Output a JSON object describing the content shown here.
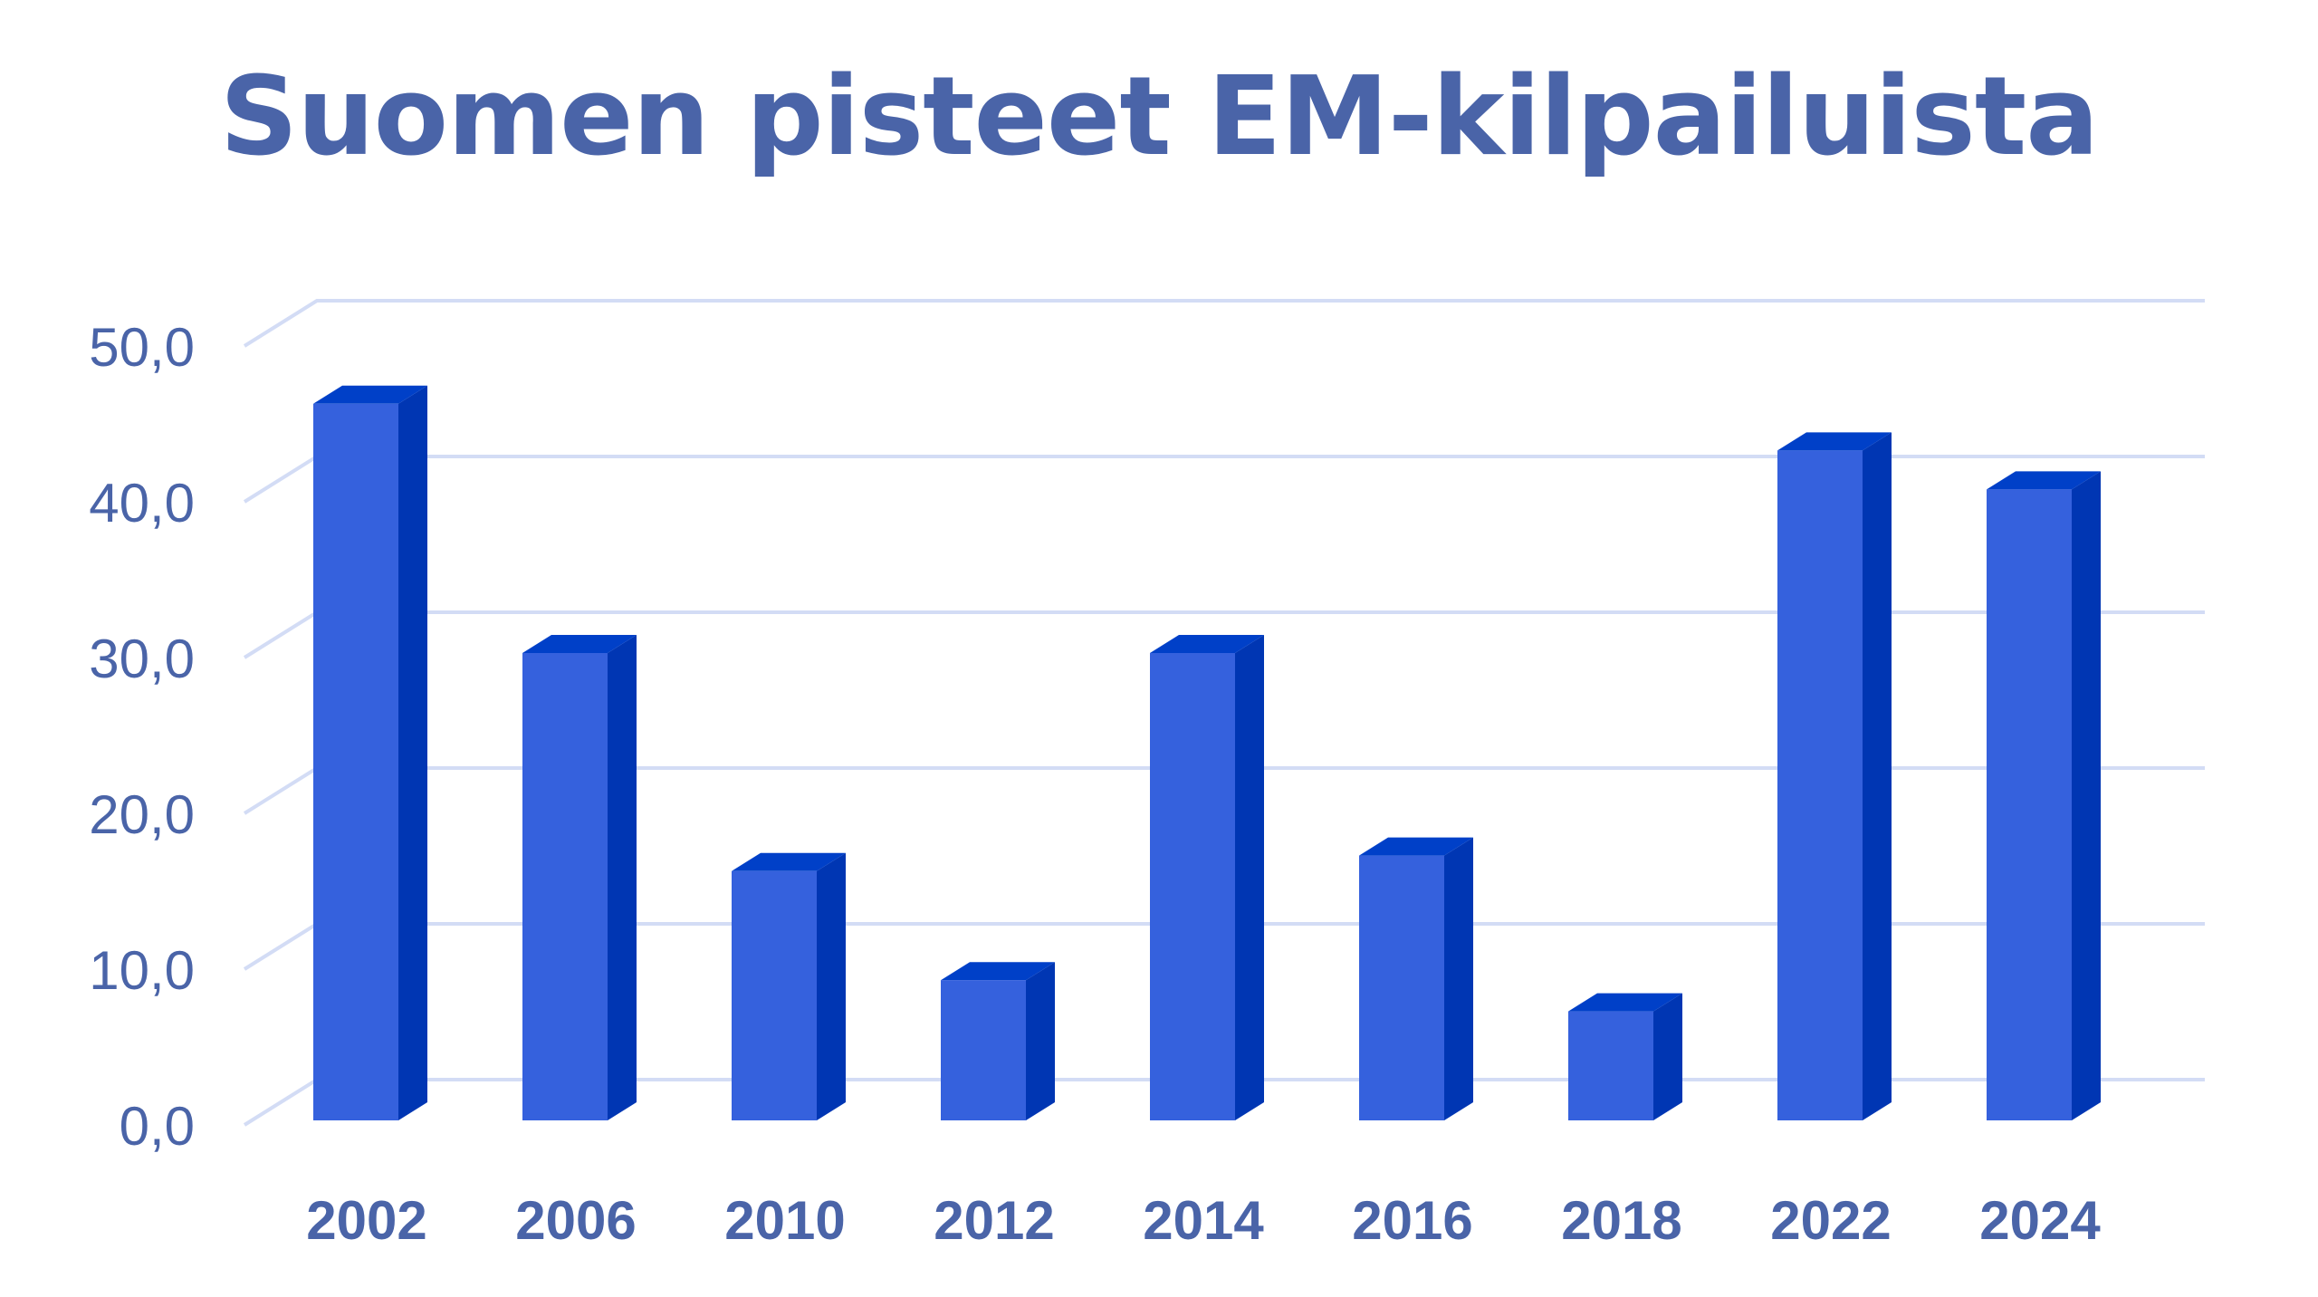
{
  "chart_data": {
    "type": "bar",
    "title": "Suomen pisteet EM-kilpailuista",
    "xlabel": "",
    "ylabel": "",
    "categories": [
      "2002",
      "2006",
      "2010",
      "2012",
      "2014",
      "2016",
      "2018",
      "2022",
      "2024"
    ],
    "values": [
      46.0,
      30.0,
      16.0,
      9.0,
      30.0,
      17.0,
      7.0,
      43.0,
      40.5
    ],
    "ylim": [
      0,
      50
    ],
    "yticks": [
      "0,0",
      "10,0",
      "20,0",
      "30,0",
      "40,0",
      "50,0"
    ],
    "grid": true,
    "legend": "none",
    "three_d": true,
    "colors": {
      "bar_front": "#3561dd",
      "bar_side": "#0036b3",
      "bar_top": "#0040c8",
      "grid": "#d3dcf5",
      "text": "#4a64a8"
    }
  }
}
